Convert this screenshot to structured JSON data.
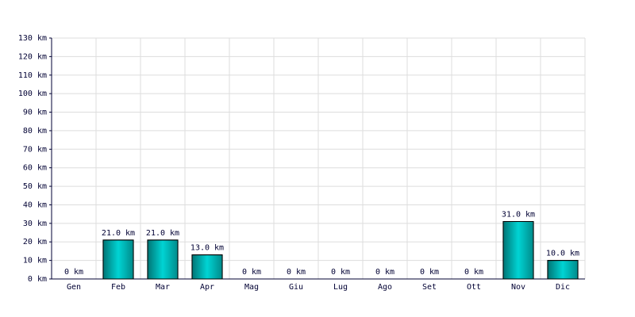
{
  "chart_data": {
    "type": "bar",
    "categories": [
      "Gen",
      "Feb",
      "Mar",
      "Apr",
      "Mag",
      "Giu",
      "Lug",
      "Ago",
      "Set",
      "Ott",
      "Nov",
      "Dic"
    ],
    "values": [
      0,
      21,
      21,
      13,
      0,
      0,
      0,
      0,
      0,
      0,
      31,
      10
    ],
    "value_labels": [
      "0 km",
      "21.0 km",
      "21.0 km",
      "13.0 km",
      "0 km",
      "0 km",
      "0 km",
      "0 km",
      "0 km",
      "0 km",
      "31.0 km",
      "10.0 km"
    ],
    "color": "#00d4d4",
    "ylim": [
      0,
      130
    ],
    "yticks": [
      {
        "value": 0,
        "label": "0 km"
      },
      {
        "value": 10,
        "label": "10 km"
      },
      {
        "value": 20,
        "label": "20 km"
      },
      {
        "value": 30,
        "label": "30 km"
      },
      {
        "value": 40,
        "label": "40 km"
      },
      {
        "value": 50,
        "label": "50 km"
      },
      {
        "value": 60,
        "label": "60 km"
      },
      {
        "value": 70,
        "label": "70 km"
      },
      {
        "value": 80,
        "label": "80 km"
      },
      {
        "value": 90,
        "label": "90 km"
      },
      {
        "value": 100,
        "label": "100 km"
      },
      {
        "value": 110,
        "label": "110 km"
      },
      {
        "value": 120,
        "label": "120 km"
      },
      {
        "value": 130,
        "label": "130 km"
      }
    ],
    "grid": true
  }
}
